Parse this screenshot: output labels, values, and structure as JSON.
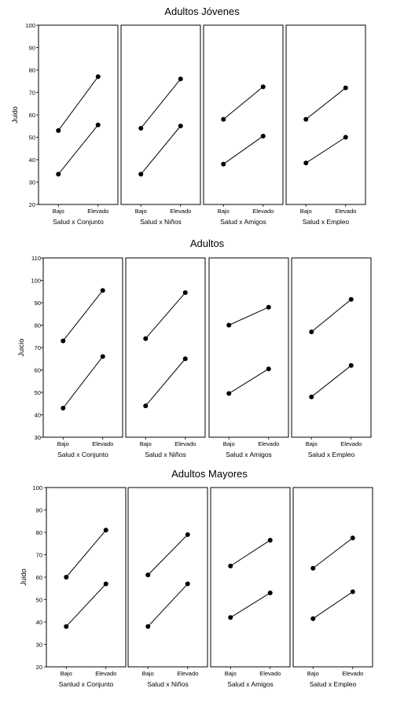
{
  "chart_data": [
    {
      "type": "line",
      "title": "Adultos  Jóvenes",
      "ylabel": "Juido",
      "ylim": [
        20,
        100
      ],
      "yticks": [
        "20",
        "30",
        "40",
        "50",
        "60",
        "70",
        "80",
        "90",
        "100"
      ],
      "categories": [
        "Bajo",
        "Elevado"
      ],
      "panels": [
        {
          "label": "Salud  x  Conjunto",
          "series": [
            {
              "values": [
                53,
                77
              ]
            },
            {
              "values": [
                33.5,
                55.5
              ]
            }
          ]
        },
        {
          "label": "Salud x Niños",
          "series": [
            {
              "values": [
                54,
                76
              ]
            },
            {
              "values": [
                33.5,
                55
              ]
            }
          ]
        },
        {
          "label": "Salud x Amigos",
          "series": [
            {
              "values": [
                58,
                72.5
              ]
            },
            {
              "values": [
                38,
                50.5
              ]
            }
          ]
        },
        {
          "label": "Salud x Empleo",
          "series": [
            {
              "values": [
                58,
                72
              ]
            },
            {
              "values": [
                38.5,
                50
              ]
            }
          ]
        }
      ]
    },
    {
      "type": "line",
      "title": "Adultos",
      "ylabel": "Juicio",
      "ylim": [
        30,
        110
      ],
      "yticks": [
        "30",
        "40",
        "50",
        "60",
        "70",
        "80",
        "90",
        "100",
        "110"
      ],
      "categories": [
        "Bajo",
        "Elevado"
      ],
      "panels": [
        {
          "label": "Salud  x  Conjunto",
          "series": [
            {
              "values": [
                73,
                95.5
              ]
            },
            {
              "values": [
                43,
                66
              ]
            }
          ]
        },
        {
          "label": "Salud x Niños",
          "series": [
            {
              "values": [
                74,
                94.5
              ]
            },
            {
              "values": [
                44,
                65
              ]
            }
          ]
        },
        {
          "label": "Salud  x Amigos",
          "series": [
            {
              "values": [
                80,
                88
              ]
            },
            {
              "values": [
                49.5,
                60.5
              ]
            }
          ]
        },
        {
          "label": "Salud x Empleo",
          "series": [
            {
              "values": [
                77,
                91.5
              ]
            },
            {
              "values": [
                48,
                62
              ]
            }
          ]
        }
      ]
    },
    {
      "type": "line",
      "title": "Adultos Mayores",
      "ylabel": "Juido",
      "ylim": [
        20,
        100
      ],
      "yticks": [
        "20",
        "30",
        "40",
        "50",
        "60",
        "70",
        "80",
        "90",
        "100"
      ],
      "categories": [
        "Bajo",
        "Elevado"
      ],
      "panels": [
        {
          "label": "Sanlud x Conjunto",
          "series": [
            {
              "values": [
                60,
                81
              ]
            },
            {
              "values": [
                38,
                57
              ]
            }
          ]
        },
        {
          "label": "Salud x Niños",
          "series": [
            {
              "values": [
                61,
                79
              ]
            },
            {
              "values": [
                38,
                57
              ]
            }
          ]
        },
        {
          "label": "Salud x Amigos",
          "series": [
            {
              "values": [
                65,
                76.5
              ]
            },
            {
              "values": [
                42,
                53
              ]
            }
          ]
        },
        {
          "label": "Salud x Empleo",
          "series": [
            {
              "values": [
                64,
                77.5
              ]
            },
            {
              "values": [
                41.5,
                53.5
              ]
            }
          ]
        }
      ]
    }
  ]
}
